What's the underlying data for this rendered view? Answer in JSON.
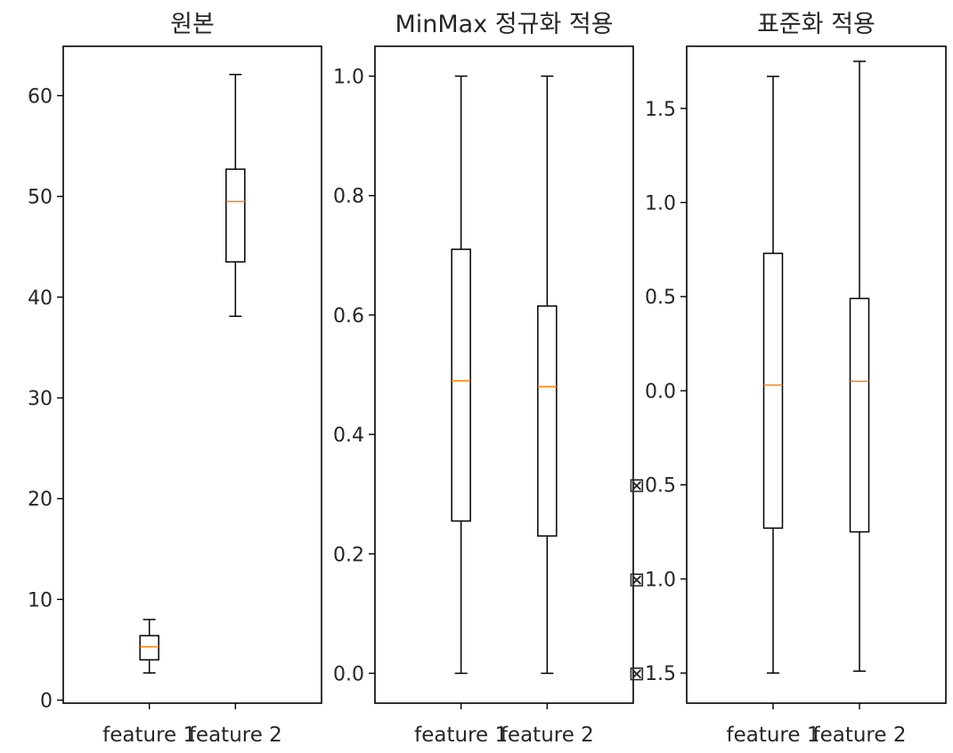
{
  "chart_data": [
    {
      "type": "box",
      "title": "원본",
      "ylim": [
        -0.3,
        64.9
      ],
      "yticks": [
        0,
        10,
        20,
        30,
        40,
        50,
        60
      ],
      "ytick_labels": [
        "0",
        "10",
        "20",
        "30",
        "40",
        "50",
        "60"
      ],
      "categories": [
        "feature 1",
        "feature 2"
      ],
      "boxes": [
        {
          "whisker_low": 2.7,
          "q1": 4.0,
          "median": 5.3,
          "q3": 6.4,
          "whisker_high": 8.0
        },
        {
          "whisker_low": 38.1,
          "q1": 43.5,
          "median": 49.5,
          "q3": 52.7,
          "whisker_high": 62.1
        }
      ]
    },
    {
      "type": "box",
      "title": "MinMax 정규화 적용",
      "ylim": [
        -0.05,
        1.05
      ],
      "yticks": [
        0.0,
        0.2,
        0.4,
        0.6,
        0.8,
        1.0
      ],
      "ytick_labels": [
        "0.0",
        "0.2",
        "0.4",
        "0.6",
        "0.8",
        "1.0"
      ],
      "categories": [
        "feature 1",
        "feature 2"
      ],
      "boxes": [
        {
          "whisker_low": 0.0,
          "q1": 0.255,
          "median": 0.49,
          "q3": 0.71,
          "whisker_high": 1.0
        },
        {
          "whisker_low": 0.0,
          "q1": 0.23,
          "median": 0.48,
          "q3": 0.615,
          "whisker_high": 1.0
        }
      ]
    },
    {
      "type": "box",
      "title": "표준화 적용",
      "ylim": [
        -1.66,
        1.83
      ],
      "yticks": [
        -1.5,
        -1.0,
        -0.5,
        0.0,
        0.5,
        1.0,
        1.5
      ],
      "ytick_labels": [
        "⊠1.5",
        "⊠1.0",
        "⊠0.5",
        "0.0",
        "0.5",
        "1.0",
        "1.5"
      ],
      "categories": [
        "feature 1",
        "feature 2"
      ],
      "boxes": [
        {
          "whisker_low": -1.5,
          "q1": -0.73,
          "median": 0.03,
          "q3": 0.73,
          "whisker_high": 1.67
        },
        {
          "whisker_low": -1.49,
          "q1": -0.75,
          "median": 0.05,
          "q3": 0.49,
          "whisker_high": 1.75
        }
      ]
    }
  ],
  "colors": {
    "axes": "#000000",
    "box": "#000000",
    "median": "#ff7f0e",
    "text": "#262626",
    "background": "#ffffff"
  }
}
